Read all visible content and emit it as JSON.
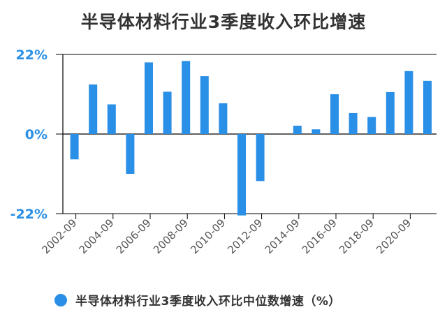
{
  "chart_data": {
    "type": "bar",
    "title": "半导体材料行业3季度收入环比增速",
    "ylim": [
      -22,
      22
    ],
    "ytick_labels": [
      "22%",
      "0%",
      "-22%"
    ],
    "yticks": [
      22,
      0,
      -22
    ],
    "categories": [
      "2002-09",
      "2003-09",
      "2004-09",
      "2005-09",
      "2006-09",
      "2007-09",
      "2008-09",
      "2009-09",
      "2010-09",
      "2011-09",
      "2012-09",
      "2013-09",
      "2014-09",
      "2015-09",
      "2016-09",
      "2017-09",
      "2018-09",
      "2019-09",
      "2020-09",
      "2021-09"
    ],
    "x_tick_labels": [
      "2002-09",
      "2004-09",
      "2006-09",
      "2008-09",
      "2010-09",
      "2012-09",
      "2014-09",
      "2016-09",
      "2018-09",
      "2020-09"
    ],
    "series": [
      {
        "name": "半导体材料行业3季度收入环比中位数增速（%）",
        "values": [
          -7,
          13.7,
          8.2,
          -11,
          19.8,
          11.7,
          20.2,
          16,
          8.5,
          -22.5,
          -13,
          0,
          2.3,
          1.3,
          11,
          5.8,
          4.7,
          11.6,
          17.4,
          14.7
        ]
      }
    ],
    "bar_color": "#2a8fe6",
    "grid": false,
    "legend_position": "bottom-left"
  }
}
